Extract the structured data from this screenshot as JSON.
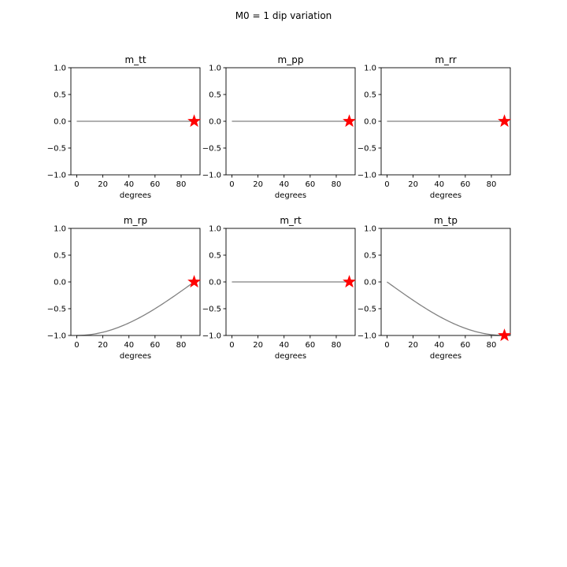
{
  "figure": {
    "suptitle": "M0 = 1    dip variation",
    "line_color": "#808080",
    "marker_color": "#ff0000"
  },
  "chart_data": [
    {
      "type": "line",
      "title": "m_tt",
      "xlabel": "degrees",
      "ylabel": "",
      "xlim": [
        -4.5,
        94.5
      ],
      "ylim": [
        -1.0,
        1.0
      ],
      "x_ticks": [
        0,
        20,
        40,
        60,
        80
      ],
      "y_ticks": [
        1.0,
        0.5,
        0.0,
        -0.5,
        -1.0
      ],
      "x_tick_labels": [
        "0",
        "20",
        "40",
        "60",
        "80"
      ],
      "y_tick_labels": [
        "1.0",
        "0.5",
        "0.0",
        "−0.5",
        "−1.0"
      ],
      "series": [
        {
          "curve": "zero",
          "x": [
            0,
            90
          ]
        }
      ],
      "marker": {
        "x": 90,
        "y": 0.0
      }
    },
    {
      "type": "line",
      "title": "m_pp",
      "xlabel": "degrees",
      "ylabel": "",
      "xlim": [
        -4.5,
        94.5
      ],
      "ylim": [
        -1.0,
        1.0
      ],
      "x_ticks": [
        0,
        20,
        40,
        60,
        80
      ],
      "y_ticks": [
        1.0,
        0.5,
        0.0,
        -0.5,
        -1.0
      ],
      "x_tick_labels": [
        "0",
        "20",
        "40",
        "60",
        "80"
      ],
      "y_tick_labels": [
        "1.0",
        "0.5",
        "0.0",
        "−0.5",
        "−1.0"
      ],
      "series": [
        {
          "curve": "zero",
          "x": [
            0,
            90
          ]
        }
      ],
      "marker": {
        "x": 90,
        "y": 0.0
      }
    },
    {
      "type": "line",
      "title": "m_rr",
      "xlabel": "degrees",
      "ylabel": "",
      "xlim": [
        -4.5,
        94.5
      ],
      "ylim": [
        -1.0,
        1.0
      ],
      "x_ticks": [
        0,
        20,
        40,
        60,
        80
      ],
      "y_ticks": [
        1.0,
        0.5,
        0.0,
        -0.5,
        -1.0
      ],
      "x_tick_labels": [
        "0",
        "20",
        "40",
        "60",
        "80"
      ],
      "y_tick_labels": [
        "1.0",
        "0.5",
        "0.0",
        "−0.5",
        "−1.0"
      ],
      "series": [
        {
          "curve": "zero",
          "x": [
            0,
            90
          ]
        }
      ],
      "marker": {
        "x": 90,
        "y": 0.0
      }
    },
    {
      "type": "line",
      "title": "m_rp",
      "xlabel": "degrees",
      "ylabel": "",
      "xlim": [
        -4.5,
        94.5
      ],
      "ylim": [
        -1.0,
        1.0
      ],
      "x_ticks": [
        0,
        20,
        40,
        60,
        80
      ],
      "y_ticks": [
        1.0,
        0.5,
        0.0,
        -0.5,
        -1.0
      ],
      "x_tick_labels": [
        "0",
        "20",
        "40",
        "60",
        "80"
      ],
      "y_tick_labels": [
        "1.0",
        "0.5",
        "0.0",
        "−0.5",
        "−1.0"
      ],
      "series": [
        {
          "curve": "neg_cos",
          "x": [
            0,
            90
          ]
        }
      ],
      "marker": {
        "x": 90,
        "y": 0.0
      }
    },
    {
      "type": "line",
      "title": "m_rt",
      "xlabel": "degrees",
      "ylabel": "",
      "xlim": [
        -4.5,
        94.5
      ],
      "ylim": [
        -1.0,
        1.0
      ],
      "x_ticks": [
        0,
        20,
        40,
        60,
        80
      ],
      "y_ticks": [
        1.0,
        0.5,
        0.0,
        -0.5,
        -1.0
      ],
      "x_tick_labels": [
        "0",
        "20",
        "40",
        "60",
        "80"
      ],
      "y_tick_labels": [
        "1.0",
        "0.5",
        "0.0",
        "−0.5",
        "−1.0"
      ],
      "series": [
        {
          "curve": "zero",
          "x": [
            0,
            90
          ]
        }
      ],
      "marker": {
        "x": 90,
        "y": 0.0
      }
    },
    {
      "type": "line",
      "title": "m_tp",
      "xlabel": "degrees",
      "ylabel": "",
      "xlim": [
        -4.5,
        94.5
      ],
      "ylim": [
        -1.0,
        1.0
      ],
      "x_ticks": [
        0,
        20,
        40,
        60,
        80
      ],
      "y_ticks": [
        1.0,
        0.5,
        0.0,
        -0.5,
        -1.0
      ],
      "x_tick_labels": [
        "0",
        "20",
        "40",
        "60",
        "80"
      ],
      "y_tick_labels": [
        "1.0",
        "0.5",
        "0.0",
        "−0.5",
        "−1.0"
      ],
      "series": [
        {
          "curve": "neg_sin",
          "x": [
            0,
            90
          ]
        }
      ],
      "marker": {
        "x": 90,
        "y": -1.0
      }
    }
  ]
}
